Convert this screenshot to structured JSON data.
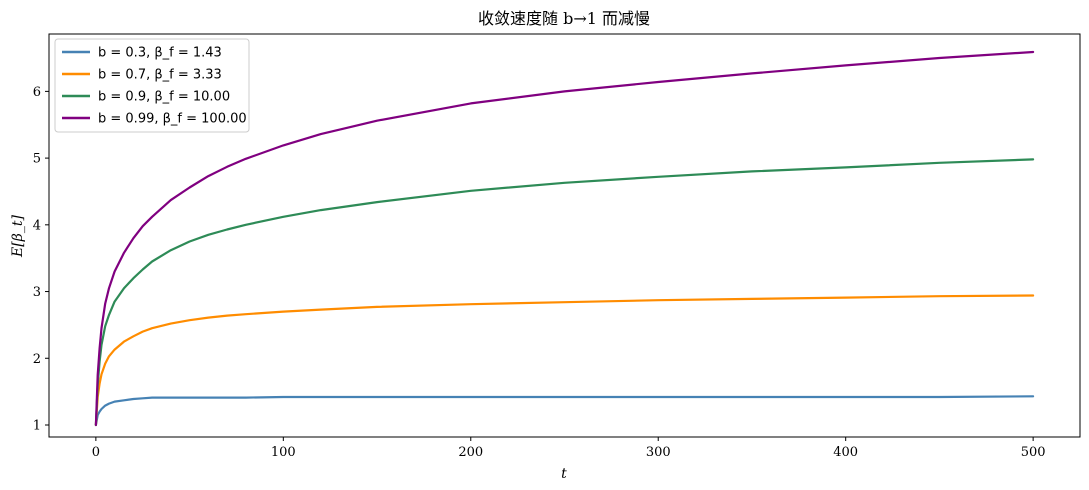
{
  "chart_data": {
    "type": "line",
    "title": "收敛速度随 b→1 而减慢",
    "xlabel": "t",
    "ylabel": "E[β_t]",
    "xlim": [
      -25,
      525
    ],
    "ylim": [
      0.82,
      6.86
    ],
    "xticks": [
      0,
      100,
      200,
      300,
      400,
      500
    ],
    "yticks": [
      1,
      2,
      3,
      4,
      5,
      6
    ],
    "grid": false,
    "legend_position": "top-left",
    "x": [
      0,
      1,
      2,
      3,
      5,
      7,
      10,
      15,
      20,
      25,
      30,
      40,
      50,
      60,
      70,
      80,
      100,
      120,
      150,
      200,
      250,
      300,
      350,
      400,
      450,
      500
    ],
    "series": [
      {
        "name": "b = 0.3, β_f = 1.43",
        "color": "#4682b4",
        "values": [
          1.0,
          1.15,
          1.2,
          1.24,
          1.29,
          1.32,
          1.35,
          1.37,
          1.39,
          1.4,
          1.41,
          1.41,
          1.41,
          1.41,
          1.41,
          1.41,
          1.42,
          1.42,
          1.42,
          1.42,
          1.42,
          1.42,
          1.42,
          1.42,
          1.42,
          1.43
        ]
      },
      {
        "name": "b = 0.7, β_f = 3.33",
        "color": "#ff8c00",
        "values": [
          1.0,
          1.42,
          1.62,
          1.76,
          1.92,
          2.03,
          2.13,
          2.25,
          2.33,
          2.4,
          2.45,
          2.52,
          2.57,
          2.61,
          2.64,
          2.66,
          2.7,
          2.73,
          2.77,
          2.81,
          2.84,
          2.87,
          2.89,
          2.91,
          2.93,
          2.94
        ]
      },
      {
        "name": "b = 0.9, β_f = 10.00",
        "color": "#2e8b57",
        "values": [
          1.0,
          1.6,
          1.95,
          2.2,
          2.48,
          2.65,
          2.85,
          3.05,
          3.2,
          3.33,
          3.45,
          3.62,
          3.75,
          3.85,
          3.93,
          4.0,
          4.12,
          4.22,
          4.34,
          4.51,
          4.63,
          4.72,
          4.8,
          4.86,
          4.93,
          4.98
        ]
      },
      {
        "name": "b = 0.99, β_f = 100.00",
        "color": "#800080",
        "values": [
          1.0,
          1.75,
          2.15,
          2.45,
          2.82,
          3.05,
          3.3,
          3.58,
          3.8,
          3.98,
          4.12,
          4.37,
          4.56,
          4.73,
          4.87,
          4.99,
          5.19,
          5.36,
          5.56,
          5.82,
          6.0,
          6.14,
          6.27,
          6.39,
          6.5,
          6.59
        ]
      }
    ]
  }
}
